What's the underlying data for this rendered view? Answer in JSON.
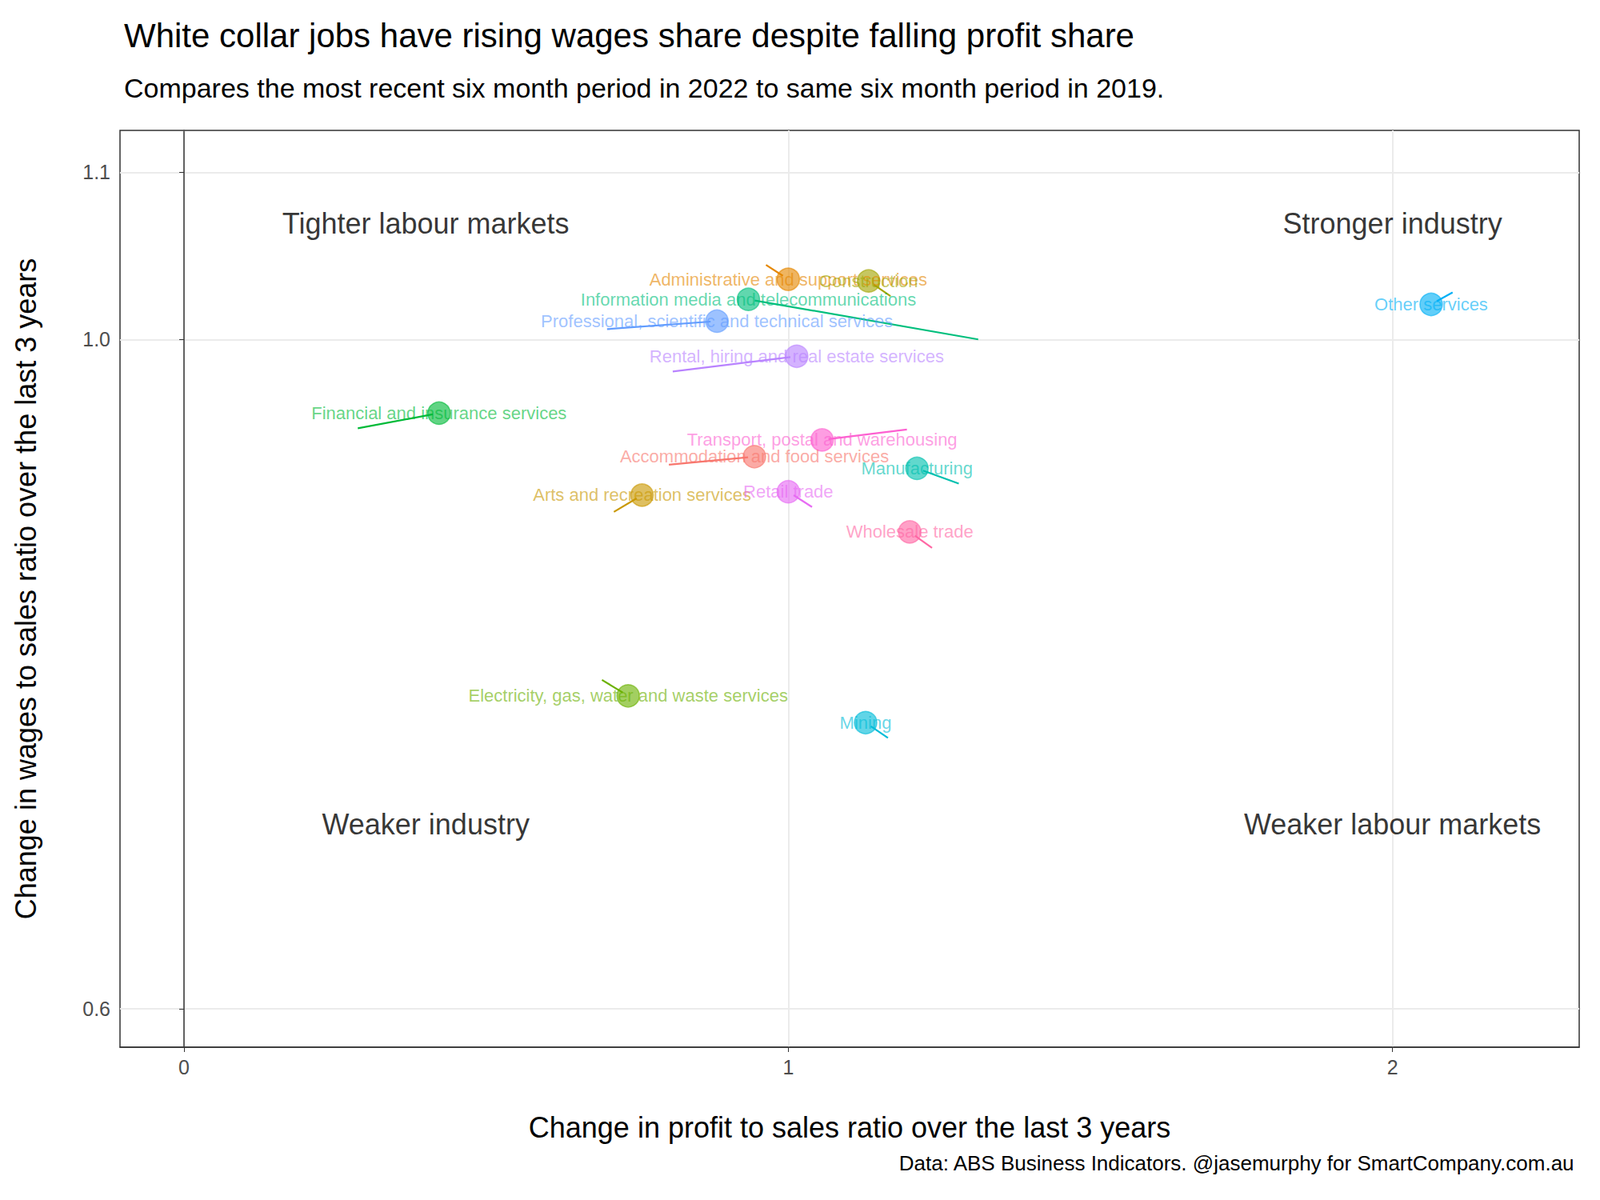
{
  "chart_data": {
    "type": "scatter",
    "title": "White collar jobs have rising wages share despite falling profit share",
    "subtitle": "Compares the most recent six month period in 2022 to same six month period in 2019.",
    "caption": "Data: ABS Business Indicators. @jasemurphy for SmartCompany.com.au",
    "x_label": "Change in profit to sales ratio over the last 3 years",
    "y_label": "Change in wages to sales ratio over the last 3 years",
    "labels": [
      "Accommodation and food services",
      "Administrative and support services",
      "Arts and recreation services",
      "Construction",
      "Electricity, gas, water and waste services",
      "Financial and insurance services",
      "Information media and telecommunications",
      "Manufacturing",
      "Mining",
      "Other services",
      "Professional, scientific and technical services",
      "Rental, hiring and real estate services",
      "Retail trade",
      "Transport, postal and warehousing",
      "Wholesale trade"
    ],
    "x": [
      0.944,
      1.0,
      0.758,
      1.133,
      0.735,
      0.422,
      0.934,
      1.213,
      1.128,
      2.064,
      0.882,
      1.014,
      1.0,
      1.056,
      1.201
    ],
    "values": [
      0.93,
      1.036,
      0.907,
      1.035,
      0.787,
      0.956,
      1.024,
      0.923,
      0.771,
      1.021,
      1.011,
      0.99,
      0.909,
      0.94,
      0.885
    ],
    "colors": [
      "#F8766D",
      "#E58700",
      "#C99800",
      "#A3A500",
      "#6BB100",
      "#00BA38",
      "#00BF7D",
      "#00C0AF",
      "#00BCD8",
      "#00B0F6",
      "#619CFF",
      "#B983FF",
      "#E76BF3",
      "#FD61D1",
      "#FF67A4"
    ],
    "annotations": [
      {
        "text": "Tighter labour markets",
        "x": 0.4,
        "y": 1.0695
      },
      {
        "text": "Stronger industry",
        "x": 2.0,
        "y": 1.0695
      },
      {
        "text": "Weaker industry",
        "x": 0.4,
        "y": 0.7104
      },
      {
        "text": "Weaker labour markets",
        "x": 2.0,
        "y": 0.7104
      }
    ],
    "xlim": [
      -0.106,
      2.309
    ],
    "ylim": [
      0.577,
      1.125
    ],
    "xticks": [
      0,
      1,
      2
    ],
    "yticks": [
      0.6,
      {
        "value": 1,
        "label": "1.0"
      },
      1.1
    ],
    "grid": true
  }
}
